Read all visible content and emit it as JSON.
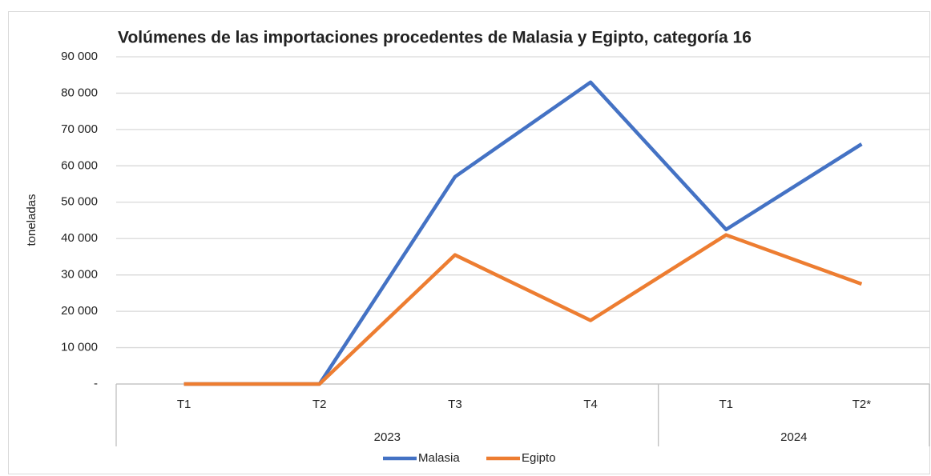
{
  "chart_data": {
    "type": "line",
    "title": "Volúmenes de las importaciones procedentes de Malasia y Egipto, categoría 16",
    "y_label": "toneladas",
    "categories": [
      "T1",
      "T2",
      "T3",
      "T4",
      "T1",
      "T2*"
    ],
    "groups": [
      {
        "label": "2023",
        "span": 4
      },
      {
        "label": "2024",
        "span": 2
      }
    ],
    "series": [
      {
        "name": "Malasia",
        "color": "#4472c4",
        "values": [
          0,
          0,
          57000,
          83000,
          42500,
          66000
        ]
      },
      {
        "name": "Egipto",
        "color": "#ed7d31",
        "values": [
          0,
          0,
          35500,
          17500,
          41000,
          27500
        ]
      }
    ],
    "ylim": [
      0,
      90000
    ],
    "yticks": [
      {
        "value": 0,
        "label": "-"
      },
      {
        "value": 10000,
        "label": "10 000"
      },
      {
        "value": 20000,
        "label": "20 000"
      },
      {
        "value": 30000,
        "label": "30 000"
      },
      {
        "value": 40000,
        "label": "40 000"
      },
      {
        "value": 50000,
        "label": "50 000"
      },
      {
        "value": 60000,
        "label": "60 000"
      },
      {
        "value": 70000,
        "label": "70 000"
      },
      {
        "value": 80000,
        "label": "80 000"
      },
      {
        "value": 90000,
        "label": "90 000"
      }
    ],
    "grid": true,
    "legend": "bottom"
  }
}
